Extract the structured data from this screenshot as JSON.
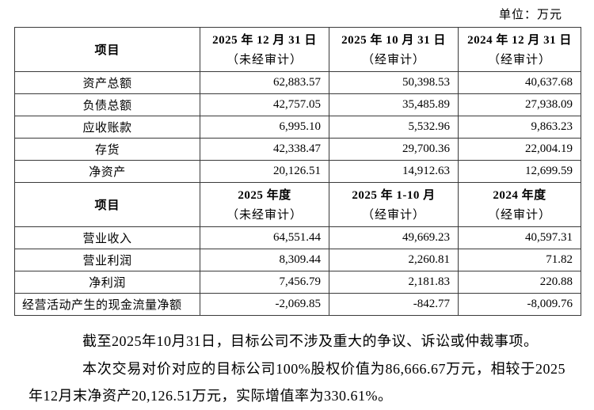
{
  "unit_label": "单位：万元",
  "table": {
    "balance": {
      "item_header": "项目",
      "columns": [
        {
          "line1": "2025 年 12 月 31 日",
          "line2": "（未经审计）"
        },
        {
          "line1": "2025 年 10 月 31 日",
          "line2": "（经审计）"
        },
        {
          "line1": "2024 年 12 月 31 日",
          "line2": "（经审计）"
        }
      ],
      "rows": [
        {
          "label": "资产总额",
          "values": [
            "62,883.57",
            "50,398.53",
            "40,637.68"
          ]
        },
        {
          "label": "负债总额",
          "values": [
            "42,757.05",
            "35,485.89",
            "27,938.09"
          ]
        },
        {
          "label": "应收账款",
          "values": [
            "6,995.10",
            "5,532.96",
            "9,863.23"
          ]
        },
        {
          "label": "存货",
          "values": [
            "42,338.47",
            "29,700.36",
            "22,004.19"
          ]
        },
        {
          "label": "净资产",
          "values": [
            "20,126.51",
            "14,912.63",
            "12,699.59"
          ]
        }
      ]
    },
    "income": {
      "item_header": "项目",
      "columns": [
        {
          "line1": "2025 年度",
          "line2": "（未经审计）"
        },
        {
          "line1": "2025 年 1-10 月",
          "line2": "（经审计）"
        },
        {
          "line1": "2024 年度",
          "line2": "（经审计）"
        }
      ],
      "rows": [
        {
          "label": "营业收入",
          "values": [
            "64,551.44",
            "49,669.23",
            "40,597.31"
          ]
        },
        {
          "label": "营业利润",
          "values": [
            "8,309.44",
            "2,260.81",
            "71.82"
          ]
        },
        {
          "label": "净利润",
          "values": [
            "7,456.79",
            "2,181.83",
            "220.88"
          ]
        },
        {
          "label": "经营活动产生的现金流量净额",
          "values": [
            "-2,069.85",
            "-842.77",
            "-8,009.76"
          ]
        }
      ]
    }
  },
  "notes": [
    "截至2025年10月31日，目标公司不涉及重大的争议、诉讼或仲裁事项。",
    "本次交易对价对应的目标公司100%股权价值为86,666.67万元，相较于2025年12月末净资产20,126.51万元，实际增值率为330.61%。"
  ]
}
